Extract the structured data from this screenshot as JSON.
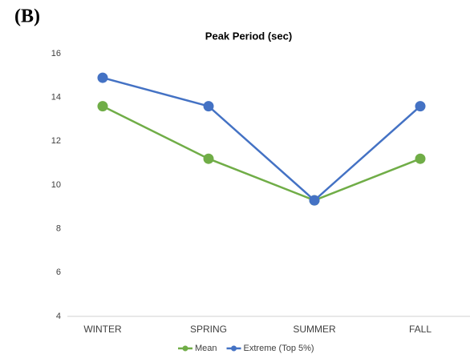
{
  "chart_data": {
    "type": "line",
    "annotation": "(B)",
    "title": "Peak Period (sec)",
    "categories": [
      "WINTER",
      "SPRING",
      "SUMMER",
      "FALL"
    ],
    "series": [
      {
        "name": "Mean",
        "color": "#70ad47",
        "values": [
          13.6,
          11.2,
          9.3,
          11.2
        ]
      },
      {
        "name": "Extreme (Top 5%)",
        "color": "#4472c4",
        "values": [
          14.9,
          13.6,
          9.3,
          13.6
        ]
      }
    ],
    "ylim": [
      4,
      16
    ],
    "yticks": [
      4,
      6,
      8,
      10,
      12,
      14,
      16
    ],
    "grid": false,
    "legend": "bottom"
  }
}
